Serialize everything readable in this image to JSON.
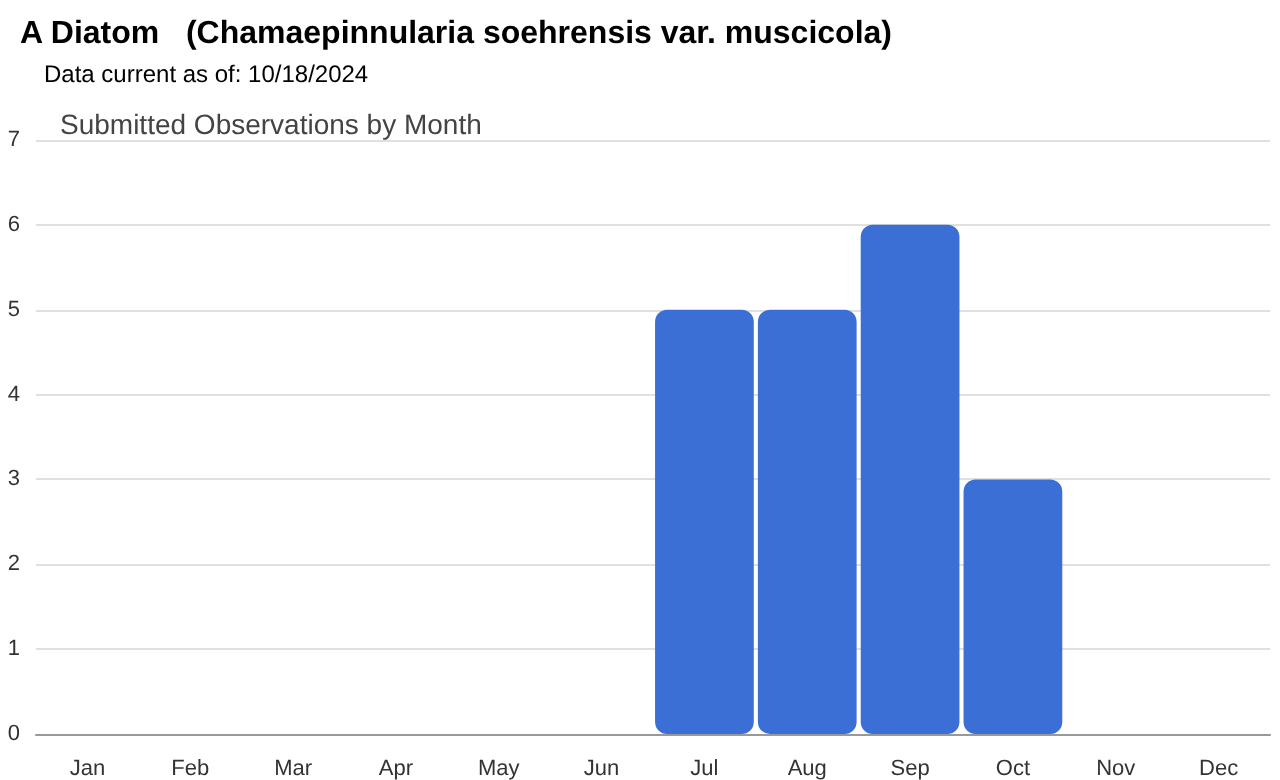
{
  "chart_data": {
    "type": "bar",
    "title": "A Diatom   (Chamaepinnularia soehrensis var. muscicola)",
    "subtitle": "Data current as of: 10/18/2024",
    "annotations": [
      "Submitted Observations by Month"
    ],
    "categories": [
      "Jan",
      "Feb",
      "Mar",
      "Apr",
      "May",
      "Jun",
      "Jul",
      "Aug",
      "Sep",
      "Oct",
      "Nov",
      "Dec"
    ],
    "values": [
      0,
      0,
      0,
      0,
      0,
      0,
      5,
      5,
      6,
      3,
      0,
      0
    ],
    "color": "#3b6fd6",
    "ylim": [
      0,
      7
    ],
    "yticks": [
      0,
      1,
      2,
      3,
      4,
      5,
      6,
      7
    ],
    "grid": "y"
  }
}
